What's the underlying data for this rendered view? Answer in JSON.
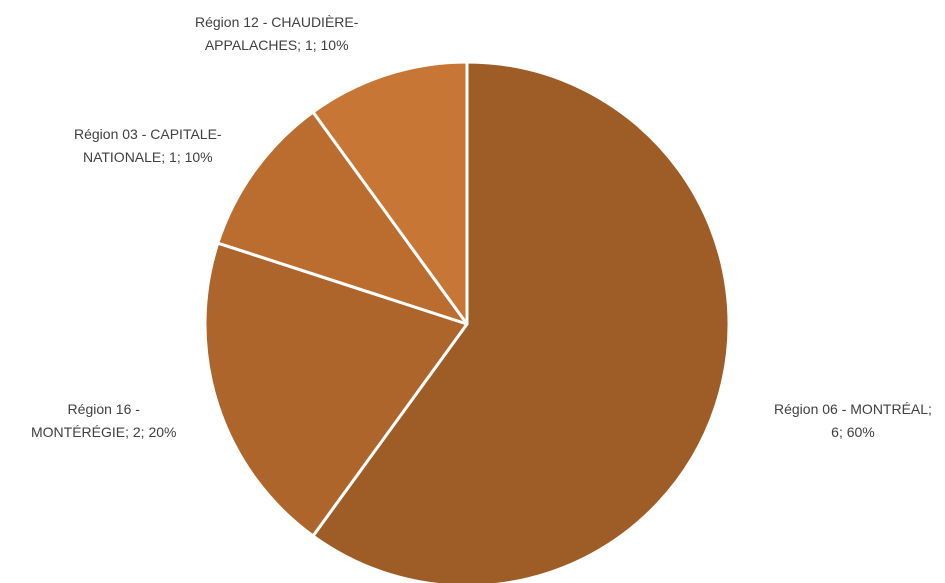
{
  "chart_data": {
    "type": "pie",
    "title": "",
    "start_angle_deg": 0,
    "direction": "clockwise",
    "slices": [
      {
        "category": "Région 06 - MONTRÉAL",
        "value": 6,
        "percent": "60%",
        "color": "#9E5C27",
        "label_lines": [
          "Région 06 - MONTRÉAL;",
          "6; 60%"
        ]
      },
      {
        "category": "Région 16 - MONTÉRÉGIE",
        "value": 2,
        "percent": "20%",
        "color": "#AD652B",
        "label_lines": [
          "Région 16 -",
          "MONTÉRÉGIE; 2; 20%"
        ]
      },
      {
        "category": "Région 03 - CAPITALE-NATIONALE",
        "value": 1,
        "percent": "10%",
        "color": "#BA6D2F",
        "label_lines": [
          "Région 03 - CAPITALE-",
          "NATIONALE; 1; 10%"
        ]
      },
      {
        "category": "Région 12 - CHAUDIÈRE-APPALACHES",
        "value": 1,
        "percent": "10%",
        "color": "#C77636",
        "label_lines": [
          "Région 12 - CHAUDIÈRE-",
          "APPALACHES; 1; 10%"
        ]
      }
    ],
    "slice_border_color": "#FFFFFF",
    "legend": "none"
  }
}
